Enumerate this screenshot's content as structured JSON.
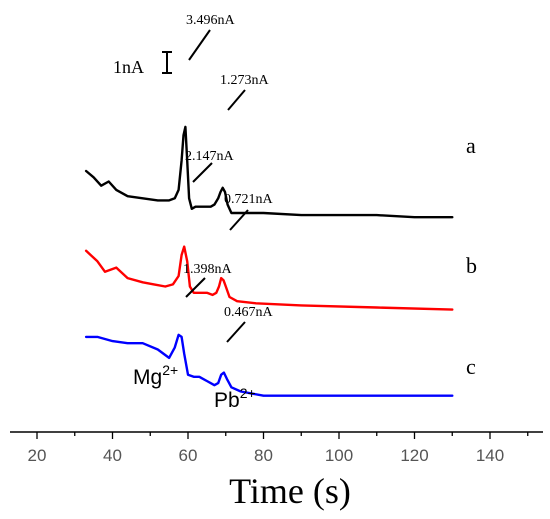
{
  "chart_data": {
    "type": "line",
    "xlabel": "Time (s)",
    "ylabel": "",
    "xlim": [
      14,
      154
    ],
    "x_ticks": [
      20,
      40,
      60,
      80,
      100,
      120,
      140
    ],
    "grid": false,
    "scale_bar": {
      "label": "1nA",
      "value_nA": 1
    },
    "series": [
      {
        "name": "a",
        "color": "#000000",
        "offset_nA": 8.5,
        "x": [
          33,
          35,
          37,
          39,
          41,
          44,
          48,
          52,
          55,
          56.5,
          57.5,
          58.3,
          58.8,
          59.3,
          59.8,
          60.3,
          61,
          62,
          64,
          66,
          67,
          68,
          68.6,
          69.2,
          69.8,
          70.5,
          71.5,
          73,
          76,
          80,
          90,
          100,
          110,
          120,
          130
        ],
        "y": [
          0.5,
          0.2,
          -0.2,
          0.0,
          -0.4,
          -0.7,
          -0.8,
          -0.9,
          -0.9,
          -0.8,
          -0.4,
          1.0,
          2.2,
          2.6,
          1.0,
          -0.8,
          -1.3,
          -1.2,
          -1.2,
          -1.2,
          -1.1,
          -0.8,
          -0.5,
          -0.3,
          -0.5,
          -1.1,
          -1.5,
          -1.5,
          -1.5,
          -1.5,
          -1.6,
          -1.6,
          -1.6,
          -1.7,
          -1.7
        ]
      },
      {
        "name": "b",
        "color": "#ff0000",
        "offset_nA": 4.5,
        "x": [
          33,
          36,
          38,
          41,
          44,
          48,
          51,
          54,
          56,
          57.5,
          58.3,
          59,
          59.8,
          60.5,
          61.5,
          63,
          65,
          66.5,
          67.5,
          68.2,
          68.8,
          69.4,
          70,
          71,
          73,
          78,
          90,
          110,
          130
        ],
        "y": [
          0.7,
          0.2,
          -0.3,
          -0.1,
          -0.6,
          -0.8,
          -0.9,
          -1.0,
          -0.9,
          -0.5,
          0.5,
          0.9,
          0.2,
          -1.0,
          -1.3,
          -1.3,
          -1.3,
          -1.4,
          -1.3,
          -1.0,
          -0.6,
          -0.7,
          -1.0,
          -1.5,
          -1.7,
          -1.8,
          -1.9,
          -2.0,
          -2.1
        ]
      },
      {
        "name": "c",
        "color": "#0000ff",
        "offset_nA": 0.5,
        "x": [
          33,
          36,
          40,
          44,
          48,
          52,
          55,
          56.5,
          57.5,
          58.3,
          59,
          60,
          61.5,
          63,
          65,
          67,
          68,
          68.8,
          69.5,
          70.3,
          71.5,
          74,
          80,
          90,
          110,
          130
        ],
        "y": [
          0.6,
          0.6,
          0.4,
          0.3,
          0.3,
          0.0,
          -0.4,
          0.1,
          0.7,
          0.6,
          -0.2,
          -1.2,
          -1.3,
          -1.3,
          -1.5,
          -1.7,
          -1.6,
          -1.2,
          -1.1,
          -1.4,
          -1.8,
          -2.0,
          -2.2,
          -2.2,
          -2.2,
          -2.2
        ]
      }
    ],
    "annotations": [
      {
        "text": "3.496nA",
        "x": 59.5
      },
      {
        "text": "1.273nA",
        "x": 69.5
      },
      {
        "text": "2.147nA",
        "x": 59.2
      },
      {
        "text": "0.721nA",
        "x": 69.0
      },
      {
        "text": "1.398nA",
        "x": 58.5
      },
      {
        "text": "0.467nA",
        "x": 69.5
      }
    ],
    "peak_labels": [
      {
        "ion": "Mg",
        "charge": "2+",
        "x": 58
      },
      {
        "ion": "Pb",
        "charge": "2+",
        "x": 69
      }
    ]
  }
}
